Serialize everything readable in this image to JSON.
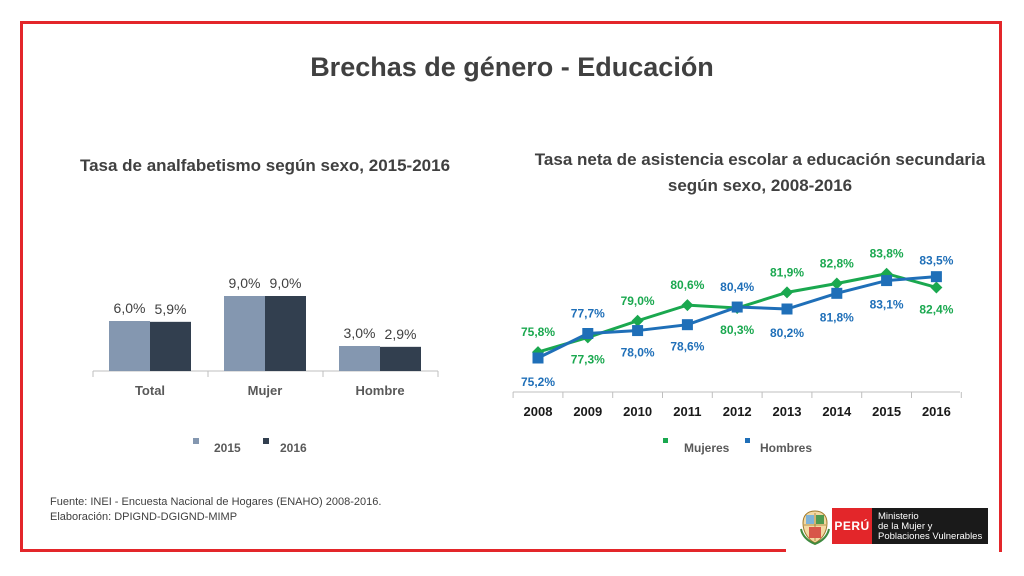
{
  "title": "Brechas de género - Educación",
  "source_lines": [
    "Fuente: INEI - Encuesta Nacional de Hogares (ENAHO) 2008-2016.",
    "Elaboración: DPIGND-DGIGND-MIMP"
  ],
  "logo": {
    "country": "PERÚ",
    "ministry_lines": [
      "Ministerio",
      "de la Mujer y",
      "Poblaciones Vulnerables"
    ]
  },
  "colors": {
    "frame": "#e3262a",
    "bar_2015": "#8497b0",
    "bar_2016": "#323f4f",
    "mujeres": "#1aa84f",
    "hombres": "#1f6fb8"
  },
  "chart_data": [
    {
      "type": "bar",
      "title": "Tasa de analfabetismo según sexo, 2015-2016",
      "categories": [
        "Total",
        "Mujer",
        "Hombre"
      ],
      "series": [
        {
          "name": "2015",
          "values": [
            6.0,
            9.0,
            3.0
          ],
          "labels": [
            "6,0%",
            "9,0%",
            "3,0%"
          ]
        },
        {
          "name": "2016",
          "values": [
            5.9,
            9.0,
            2.9
          ],
          "labels": [
            "5,9%",
            "9,0%",
            "2,9%"
          ]
        }
      ],
      "ylim": [
        0,
        12
      ],
      "grid": false,
      "legend": "bottom"
    },
    {
      "type": "line",
      "title": "Tasa neta de asistencia escolar a educación secundaria según sexo, 2008-2016",
      "x": [
        "2008",
        "2009",
        "2010",
        "2011",
        "2012",
        "2013",
        "2014",
        "2015",
        "2016"
      ],
      "series": [
        {
          "name": "Mujeres",
          "values": [
            75.8,
            77.3,
            79.0,
            80.6,
            80.3,
            81.9,
            82.8,
            83.8,
            82.4
          ],
          "labels": [
            "75,8%",
            "77,3%",
            "79,0%",
            "80,6%",
            "80,3%",
            "81,9%",
            "82,8%",
            "83,8%",
            "82,4%"
          ]
        },
        {
          "name": "Hombres",
          "values": [
            75.2,
            77.7,
            78.0,
            78.6,
            80.4,
            80.2,
            81.8,
            83.1,
            83.5
          ],
          "labels": [
            "75,2%",
            "77,7%",
            "78,0%",
            "78,6%",
            "80,4%",
            "80,2%",
            "81,8%",
            "83,1%",
            "83,5%"
          ]
        }
      ],
      "ylim": [
        70,
        86
      ],
      "grid": false,
      "legend": "bottom"
    }
  ]
}
